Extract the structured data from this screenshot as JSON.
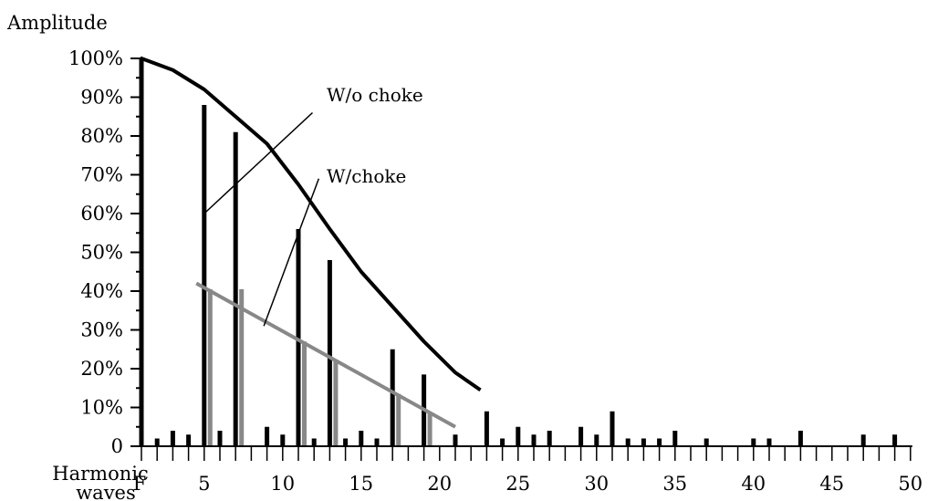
{
  "chart_data": {
    "type": "bar",
    "ylabel": "Amplitude",
    "xlabel": "Harmonic waves",
    "ylim": [
      0,
      100
    ],
    "xlim": [
      1,
      50
    ],
    "y_ticks": [
      {
        "value": 0,
        "label": "0"
      },
      {
        "value": 10,
        "label": "10%"
      },
      {
        "value": 20,
        "label": "20%"
      },
      {
        "value": 30,
        "label": "30%"
      },
      {
        "value": 40,
        "label": "40%"
      },
      {
        "value": 50,
        "label": "50%"
      },
      {
        "value": 60,
        "label": "60%"
      },
      {
        "value": 70,
        "label": "70%"
      },
      {
        "value": 80,
        "label": "80%"
      },
      {
        "value": 90,
        "label": "90%"
      },
      {
        "value": 100,
        "label": "100%"
      }
    ],
    "x_ticks": [
      {
        "value": 1,
        "label": "F"
      },
      {
        "value": 5,
        "label": "5"
      },
      {
        "value": 10,
        "label": "10"
      },
      {
        "value": 15,
        "label": "15"
      },
      {
        "value": 20,
        "label": "20"
      },
      {
        "value": 25,
        "label": "25"
      },
      {
        "value": 30,
        "label": "30"
      },
      {
        "value": 35,
        "label": "35"
      },
      {
        "value": 40,
        "label": "40"
      },
      {
        "value": 45,
        "label": "45"
      },
      {
        "value": 50,
        "label": "50"
      }
    ],
    "series": [
      {
        "name": "W/o choke",
        "color": "#000000",
        "points": [
          [
            1,
            100
          ],
          [
            2,
            2
          ],
          [
            3,
            4
          ],
          [
            4,
            3
          ],
          [
            5,
            88
          ],
          [
            6,
            4
          ],
          [
            7,
            81
          ],
          [
            9,
            5
          ],
          [
            10,
            3
          ],
          [
            11,
            56
          ],
          [
            12,
            2
          ],
          [
            13,
            48
          ],
          [
            14,
            2
          ],
          [
            15,
            4
          ],
          [
            16,
            2
          ],
          [
            17,
            25
          ],
          [
            19,
            18.5
          ],
          [
            21,
            3
          ],
          [
            23,
            9
          ],
          [
            24,
            2
          ],
          [
            25,
            5
          ],
          [
            26,
            3
          ],
          [
            27,
            4
          ],
          [
            29,
            5
          ],
          [
            30,
            3
          ],
          [
            31,
            9
          ],
          [
            32,
            2
          ],
          [
            33,
            2
          ],
          [
            34,
            2
          ],
          [
            35,
            4
          ],
          [
            37,
            2
          ],
          [
            40,
            2
          ],
          [
            41,
            2
          ],
          [
            43,
            4
          ],
          [
            47,
            3
          ],
          [
            49,
            3
          ]
        ]
      },
      {
        "name": "W/choke",
        "color": "#888888",
        "points": [
          [
            5,
            40.5
          ],
          [
            7,
            40.5
          ],
          [
            11,
            27
          ],
          [
            13,
            22
          ],
          [
            17,
            13.5
          ],
          [
            19,
            8.5
          ]
        ]
      }
    ],
    "envelopes": [
      {
        "name": "W/o choke",
        "color": "#000000",
        "points": [
          [
            1,
            100
          ],
          [
            3,
            97
          ],
          [
            5,
            92
          ],
          [
            7,
            85
          ],
          [
            9,
            78
          ],
          [
            11,
            67.5
          ],
          [
            13,
            56
          ],
          [
            15,
            45
          ],
          [
            17,
            36
          ],
          [
            19,
            27
          ],
          [
            21,
            19
          ],
          [
            22.6,
            14.5
          ]
        ]
      },
      {
        "name": "W/choke",
        "color": "#888888",
        "points": [
          [
            4.5,
            42
          ],
          [
            21,
            5
          ]
        ]
      }
    ],
    "annotations": [
      {
        "text": "W/o choke",
        "label_at": [
          12.8,
          89
        ],
        "line_from": [
          11.9,
          86
        ],
        "line_to": [
          5,
          60
        ]
      },
      {
        "text": "W/choke",
        "label_at": [
          12.8,
          68
        ],
        "line_from": [
          12.3,
          69
        ],
        "line_to": [
          8.8,
          31
        ]
      }
    ]
  }
}
